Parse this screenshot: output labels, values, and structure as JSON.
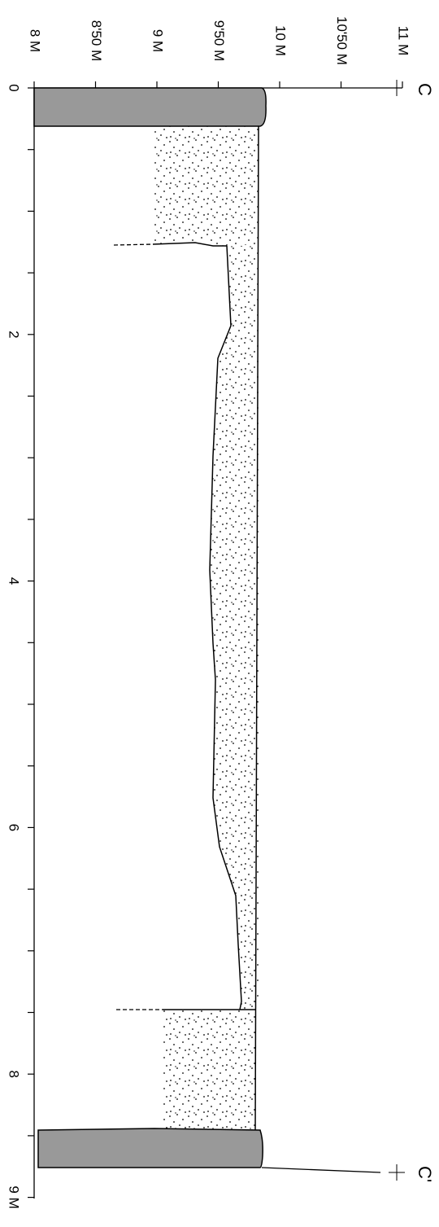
{
  "elevation_axis": {
    "labels": [
      "8 M",
      "8'50 M",
      "9 M",
      "9'50 M",
      "10 M",
      "10'50 M",
      "11 M"
    ]
  },
  "distance_axis": {
    "labels": [
      "0",
      "2",
      "4",
      "6",
      "8",
      "9 M"
    ]
  },
  "section_labels": [
    "C",
    "C'"
  ]
}
